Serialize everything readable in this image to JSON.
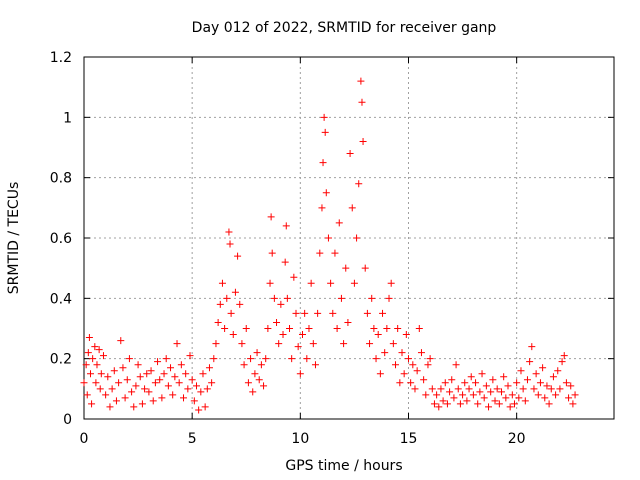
{
  "chart_data": {
    "type": "scatter",
    "title": "Day 012 of 2022, SRMTID for receiver ganp",
    "xlabel": "GPS time / hours",
    "ylabel": "SRMTID / TECUs",
    "xlim": [
      0,
      24.5
    ],
    "ylim": [
      0,
      1.2
    ],
    "xticks": [
      0,
      5,
      10,
      15,
      20
    ],
    "xtick_labels": [
      "0",
      "5",
      "10",
      "15",
      "20"
    ],
    "yticks": [
      0,
      0.2,
      0.4,
      0.6,
      0.8,
      1,
      1.2
    ],
    "ytick_labels": [
      "0",
      "0.2",
      "0.4",
      "0.6",
      "0.8",
      "1",
      "1.2"
    ],
    "grid": true,
    "marker": "+",
    "marker_color": "#ff0000",
    "series": [
      {
        "name": "SRMTID",
        "points": [
          [
            0.0,
            0.12
          ],
          [
            0.1,
            0.18
          ],
          [
            0.15,
            0.08
          ],
          [
            0.2,
            0.22
          ],
          [
            0.25,
            0.27
          ],
          [
            0.3,
            0.15
          ],
          [
            0.35,
            0.05
          ],
          [
            0.4,
            0.2
          ],
          [
            0.5,
            0.24
          ],
          [
            0.55,
            0.12
          ],
          [
            0.6,
            0.18
          ],
          [
            0.7,
            0.23
          ],
          [
            0.75,
            0.1
          ],
          [
            0.8,
            0.15
          ],
          [
            0.9,
            0.21
          ],
          [
            1.0,
            0.08
          ],
          [
            1.1,
            0.14
          ],
          [
            1.2,
            0.04
          ],
          [
            1.3,
            0.1
          ],
          [
            1.4,
            0.16
          ],
          [
            1.5,
            0.06
          ],
          [
            1.6,
            0.12
          ],
          [
            1.7,
            0.26
          ],
          [
            1.8,
            0.17
          ],
          [
            1.9,
            0.07
          ],
          [
            2.0,
            0.13
          ],
          [
            2.1,
            0.2
          ],
          [
            2.2,
            0.09
          ],
          [
            2.3,
            0.04
          ],
          [
            2.4,
            0.11
          ],
          [
            2.5,
            0.18
          ],
          [
            2.6,
            0.14
          ],
          [
            2.7,
            0.05
          ],
          [
            2.8,
            0.1
          ],
          [
            2.9,
            0.15
          ],
          [
            3.0,
            0.09
          ],
          [
            3.1,
            0.16
          ],
          [
            3.2,
            0.06
          ],
          [
            3.3,
            0.12
          ],
          [
            3.4,
            0.19
          ],
          [
            3.5,
            0.13
          ],
          [
            3.6,
            0.07
          ],
          [
            3.7,
            0.15
          ],
          [
            3.8,
            0.2
          ],
          [
            3.9,
            0.11
          ],
          [
            4.0,
            0.17
          ],
          [
            4.1,
            0.08
          ],
          [
            4.2,
            0.14
          ],
          [
            4.3,
            0.25
          ],
          [
            4.4,
            0.12
          ],
          [
            4.5,
            0.18
          ],
          [
            4.6,
            0.07
          ],
          [
            4.7,
            0.15
          ],
          [
            4.8,
            0.1
          ],
          [
            4.9,
            0.21
          ],
          [
            5.0,
            0.13
          ],
          [
            5.1,
            0.06
          ],
          [
            5.2,
            0.11
          ],
          [
            5.3,
            0.03
          ],
          [
            5.4,
            0.09
          ],
          [
            5.5,
            0.15
          ],
          [
            5.6,
            0.04
          ],
          [
            5.7,
            0.1
          ],
          [
            5.8,
            0.17
          ],
          [
            5.9,
            0.12
          ],
          [
            6.0,
            0.2
          ],
          [
            6.1,
            0.25
          ],
          [
            6.2,
            0.32
          ],
          [
            6.3,
            0.38
          ],
          [
            6.4,
            0.45
          ],
          [
            6.5,
            0.3
          ],
          [
            6.6,
            0.4
          ],
          [
            6.7,
            0.62
          ],
          [
            6.75,
            0.58
          ],
          [
            6.8,
            0.35
          ],
          [
            6.9,
            0.28
          ],
          [
            7.0,
            0.42
          ],
          [
            7.1,
            0.54
          ],
          [
            7.2,
            0.38
          ],
          [
            7.3,
            0.25
          ],
          [
            7.4,
            0.18
          ],
          [
            7.5,
            0.3
          ],
          [
            7.6,
            0.12
          ],
          [
            7.7,
            0.2
          ],
          [
            7.8,
            0.09
          ],
          [
            7.9,
            0.15
          ],
          [
            8.0,
            0.22
          ],
          [
            8.1,
            0.13
          ],
          [
            8.2,
            0.18
          ],
          [
            8.3,
            0.11
          ],
          [
            8.4,
            0.2
          ],
          [
            8.5,
            0.3
          ],
          [
            8.6,
            0.45
          ],
          [
            8.65,
            0.67
          ],
          [
            8.7,
            0.55
          ],
          [
            8.8,
            0.4
          ],
          [
            8.9,
            0.32
          ],
          [
            9.0,
            0.25
          ],
          [
            9.1,
            0.38
          ],
          [
            9.2,
            0.28
          ],
          [
            9.3,
            0.52
          ],
          [
            9.35,
            0.64
          ],
          [
            9.4,
            0.4
          ],
          [
            9.5,
            0.3
          ],
          [
            9.6,
            0.2
          ],
          [
            9.7,
            0.47
          ],
          [
            9.8,
            0.35
          ],
          [
            9.9,
            0.24
          ],
          [
            10.0,
            0.15
          ],
          [
            10.1,
            0.28
          ],
          [
            10.2,
            0.35
          ],
          [
            10.3,
            0.2
          ],
          [
            10.4,
            0.3
          ],
          [
            10.5,
            0.45
          ],
          [
            10.6,
            0.25
          ],
          [
            10.7,
            0.18
          ],
          [
            10.8,
            0.35
          ],
          [
            10.9,
            0.55
          ],
          [
            11.0,
            0.7
          ],
          [
            11.05,
            0.85
          ],
          [
            11.1,
            1.0
          ],
          [
            11.15,
            0.95
          ],
          [
            11.2,
            0.75
          ],
          [
            11.3,
            0.6
          ],
          [
            11.4,
            0.45
          ],
          [
            11.5,
            0.35
          ],
          [
            11.6,
            0.55
          ],
          [
            11.7,
            0.3
          ],
          [
            11.8,
            0.65
          ],
          [
            11.9,
            0.4
          ],
          [
            12.0,
            0.25
          ],
          [
            12.1,
            0.5
          ],
          [
            12.2,
            0.32
          ],
          [
            12.3,
            0.88
          ],
          [
            12.4,
            0.7
          ],
          [
            12.5,
            0.45
          ],
          [
            12.6,
            0.6
          ],
          [
            12.7,
            0.78
          ],
          [
            12.8,
            1.12
          ],
          [
            12.85,
            1.05
          ],
          [
            12.9,
            0.92
          ],
          [
            13.0,
            0.5
          ],
          [
            13.1,
            0.35
          ],
          [
            13.2,
            0.25
          ],
          [
            13.3,
            0.4
          ],
          [
            13.4,
            0.3
          ],
          [
            13.5,
            0.2
          ],
          [
            13.6,
            0.28
          ],
          [
            13.7,
            0.15
          ],
          [
            13.8,
            0.35
          ],
          [
            13.9,
            0.22
          ],
          [
            14.0,
            0.3
          ],
          [
            14.1,
            0.4
          ],
          [
            14.2,
            0.45
          ],
          [
            14.3,
            0.25
          ],
          [
            14.4,
            0.18
          ],
          [
            14.5,
            0.3
          ],
          [
            14.6,
            0.12
          ],
          [
            14.7,
            0.22
          ],
          [
            14.8,
            0.15
          ],
          [
            14.9,
            0.28
          ],
          [
            15.0,
            0.2
          ],
          [
            15.1,
            0.12
          ],
          [
            15.2,
            0.18
          ],
          [
            15.3,
            0.1
          ],
          [
            15.4,
            0.16
          ],
          [
            15.5,
            0.3
          ],
          [
            15.6,
            0.22
          ],
          [
            15.7,
            0.13
          ],
          [
            15.8,
            0.08
          ],
          [
            15.9,
            0.18
          ],
          [
            16.0,
            0.2
          ],
          [
            16.1,
            0.1
          ],
          [
            16.2,
            0.05
          ],
          [
            16.3,
            0.08
          ],
          [
            16.4,
            0.04
          ],
          [
            16.5,
            0.1
          ],
          [
            16.6,
            0.06
          ],
          [
            16.7,
            0.12
          ],
          [
            16.8,
            0.05
          ],
          [
            16.9,
            0.09
          ],
          [
            17.0,
            0.13
          ],
          [
            17.1,
            0.07
          ],
          [
            17.2,
            0.18
          ],
          [
            17.3,
            0.1
          ],
          [
            17.4,
            0.05
          ],
          [
            17.5,
            0.08
          ],
          [
            17.6,
            0.12
          ],
          [
            17.7,
            0.06
          ],
          [
            17.8,
            0.1
          ],
          [
            17.9,
            0.14
          ],
          [
            18.0,
            0.08
          ],
          [
            18.1,
            0.12
          ],
          [
            18.2,
            0.05
          ],
          [
            18.3,
            0.09
          ],
          [
            18.4,
            0.15
          ],
          [
            18.5,
            0.07
          ],
          [
            18.6,
            0.11
          ],
          [
            18.7,
            0.04
          ],
          [
            18.8,
            0.09
          ],
          [
            18.9,
            0.13
          ],
          [
            19.0,
            0.06
          ],
          [
            19.1,
            0.1
          ],
          [
            19.2,
            0.05
          ],
          [
            19.3,
            0.09
          ],
          [
            19.4,
            0.14
          ],
          [
            19.5,
            0.07
          ],
          [
            19.6,
            0.11
          ],
          [
            19.7,
            0.04
          ],
          [
            19.8,
            0.08
          ],
          [
            19.9,
            0.05
          ],
          [
            20.0,
            0.12
          ],
          [
            20.1,
            0.07
          ],
          [
            20.2,
            0.16
          ],
          [
            20.3,
            0.1
          ],
          [
            20.4,
            0.06
          ],
          [
            20.5,
            0.13
          ],
          [
            20.6,
            0.19
          ],
          [
            20.7,
            0.24
          ],
          [
            20.8,
            0.1
          ],
          [
            20.9,
            0.15
          ],
          [
            21.0,
            0.08
          ],
          [
            21.1,
            0.12
          ],
          [
            21.2,
            0.17
          ],
          [
            21.3,
            0.07
          ],
          [
            21.4,
            0.11
          ],
          [
            21.5,
            0.05
          ],
          [
            21.6,
            0.1
          ],
          [
            21.7,
            0.14
          ],
          [
            21.8,
            0.08
          ],
          [
            21.9,
            0.16
          ],
          [
            22.0,
            0.1
          ],
          [
            22.1,
            0.19
          ],
          [
            22.2,
            0.21
          ],
          [
            22.3,
            0.12
          ],
          [
            22.4,
            0.07
          ],
          [
            22.5,
            0.11
          ],
          [
            22.6,
            0.05
          ],
          [
            22.7,
            0.08
          ]
        ]
      }
    ]
  }
}
